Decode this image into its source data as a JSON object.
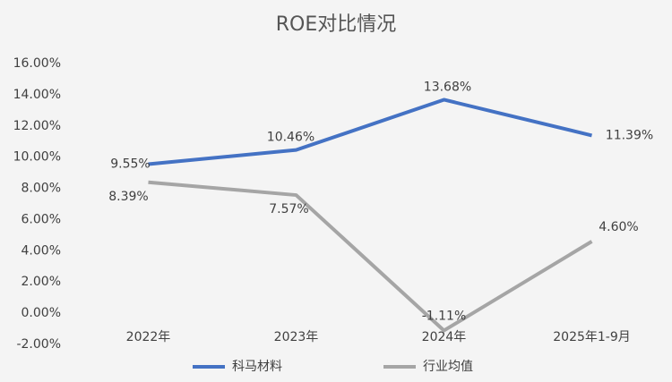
{
  "chart_data": {
    "type": "line",
    "title": "ROE对比情况",
    "categories": [
      "2022年",
      "2023年",
      "2024年",
      "2025年1-9月"
    ],
    "series": [
      {
        "name": "科马材料",
        "color": "#4472c4",
        "values": [
          9.55,
          10.46,
          13.68,
          11.39
        ],
        "value_labels": [
          "9.55%",
          "10.46%",
          "13.68%",
          "11.39%"
        ]
      },
      {
        "name": "行业均值",
        "color": "#a5a5a5",
        "values": [
          8.39,
          7.57,
          -1.11,
          4.6
        ],
        "value_labels": [
          "8.39%",
          "7.57%",
          "-1.11%",
          "4.60%"
        ]
      }
    ],
    "ylim": [
      -2,
      16
    ],
    "yticks": [
      {
        "value": -2,
        "label": "-2.00%"
      },
      {
        "value": 0,
        "label": "0.00%"
      },
      {
        "value": 2,
        "label": "2.00%"
      },
      {
        "value": 4,
        "label": "4.00%"
      },
      {
        "value": 6,
        "label": "6.00%"
      },
      {
        "value": 8,
        "label": "8.00%"
      },
      {
        "value": 10,
        "label": "10.00%"
      },
      {
        "value": 12,
        "label": "12.00%"
      },
      {
        "value": 14,
        "label": "14.00%"
      },
      {
        "value": 16,
        "label": "16.00%"
      }
    ],
    "grid": false,
    "legend": "bottom"
  }
}
